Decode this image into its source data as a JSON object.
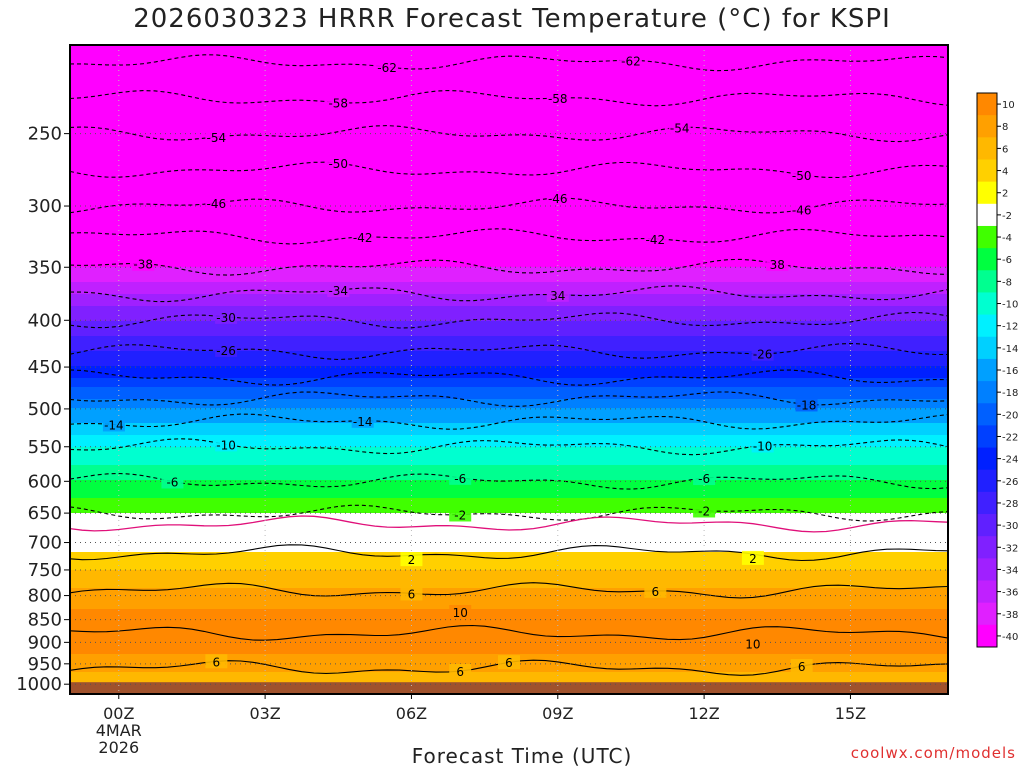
{
  "title": "2026030323 HRRR Forecast Temperature (°C) for KSPI",
  "credit": "coolwx.com/models",
  "chart_data": {
    "type": "heatmap",
    "title": "2026030323 HRRR Forecast Temperature (°C) for KSPI",
    "xlabel": "Forecast Time (UTC)",
    "ylabel": "",
    "x_ticks": [
      "00Z",
      "03Z",
      "06Z",
      "09Z",
      "12Z",
      "15Z"
    ],
    "x_tick_hours": [
      1,
      4,
      7,
      10,
      13,
      16
    ],
    "x_range_hours": [
      0,
      18
    ],
    "x_first_tick_date": [
      "4MAR",
      "2026"
    ],
    "y_ticks": [
      250,
      300,
      350,
      400,
      450,
      500,
      550,
      600,
      650,
      700,
      750,
      800,
      850,
      900,
      950,
      1000
    ],
    "y_range_hpa": [
      200,
      1025
    ],
    "y_scale": "log-pressure",
    "grid": true,
    "ground_below_hpa": 1000,
    "ground_color": "#a0522d",
    "colorbar": {
      "labels": [
        "10",
        "8",
        "6",
        "4",
        "2",
        "-2",
        "-4",
        "-6",
        "-8",
        "-10",
        "-12",
        "-14",
        "-16",
        "-18",
        "-20",
        "-22",
        "-24",
        "-26",
        "-28",
        "-30",
        "-32",
        "-34",
        "-36",
        "-38",
        "-40"
      ],
      "colors": [
        "#ff8800",
        "#ffa000",
        "#ffb800",
        "#ffd000",
        "#ffff00",
        "#ffffff",
        "#40ff00",
        "#00ff40",
        "#00ff90",
        "#00ffd0",
        "#00f0ff",
        "#00d0ff",
        "#00a0ff",
        "#0080ff",
        "#0060ff",
        "#0040ff",
        "#0020ff",
        "#2020ff",
        "#4020ff",
        "#6020ff",
        "#8020ff",
        "#a020ff",
        "#c020ff",
        "#e020ff",
        "#ff00ff"
      ]
    },
    "profile_hpa": [
      1000,
      950,
      900,
      850,
      800,
      750,
      700,
      650,
      600,
      550,
      500,
      450,
      400,
      350,
      300,
      250,
      200
    ],
    "profile_temp_c": [
      4,
      7,
      9,
      9,
      7,
      4,
      1,
      -2,
      -6,
      -10,
      -16,
      -24,
      -30,
      -38,
      -46,
      -54,
      -64
    ],
    "contour_levels": [
      -62,
      -58,
      -54,
      -50,
      -46,
      -42,
      -38,
      -34,
      -30,
      -26,
      -22,
      -18,
      -14,
      -10,
      -6,
      -2,
      2,
      6,
      10
    ],
    "contour_labels": [
      {
        "text": "-62"
      },
      {
        "text": "-62"
      },
      {
        "text": "-58"
      },
      {
        "text": "-58"
      },
      {
        "text": "-54"
      },
      {
        "text": "-54"
      },
      {
        "text": "-50"
      },
      {
        "text": "-50"
      },
      {
        "text": "-46"
      },
      {
        "text": "-46"
      },
      {
        "text": "-46"
      },
      {
        "text": "-42"
      },
      {
        "text": "-42"
      },
      {
        "text": "-38"
      },
      {
        "text": "38"
      },
      {
        "text": "-34"
      },
      {
        "text": "34"
      },
      {
        "text": "-30"
      },
      {
        "text": "-26"
      },
      {
        "text": "-26"
      },
      {
        "text": "-18"
      },
      {
        "text": "-14"
      },
      {
        "text": "-14"
      },
      {
        "text": "-10"
      },
      {
        "text": "-10"
      },
      {
        "text": "-6"
      },
      {
        "text": "-6"
      },
      {
        "text": "-6"
      },
      {
        "text": "-2"
      },
      {
        "text": "-2"
      },
      {
        "text": "2"
      },
      {
        "text": "2"
      },
      {
        "text": "6"
      },
      {
        "text": "6"
      },
      {
        "text": "10"
      },
      {
        "text": "10"
      },
      {
        "text": "6"
      },
      {
        "text": "6"
      },
      {
        "text": "6"
      },
      {
        "text": "6"
      }
    ]
  }
}
